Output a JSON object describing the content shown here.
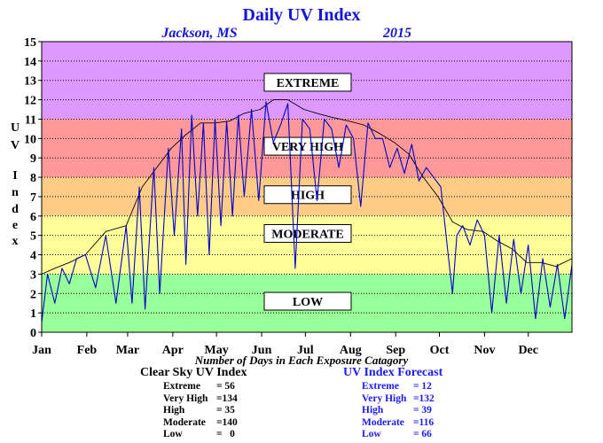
{
  "header": {
    "title": "Daily UV Index",
    "location": "Jackson, MS",
    "year": "2015"
  },
  "chart_data": {
    "type": "line",
    "ylabel": "UV Index",
    "ylabel_letters": [
      "U",
      "V",
      "I",
      "n",
      "d",
      "e",
      "x"
    ],
    "xlabel": "Number of Days in Each Exposure Catagory",
    "ylim": [
      0,
      15
    ],
    "y_ticks": [
      "0",
      "1",
      "2",
      "3",
      "4",
      "5",
      "6",
      "7",
      "8",
      "9",
      "10",
      "11",
      "12",
      "13",
      "14",
      "15"
    ],
    "x_ticks": [
      "Jan",
      "Feb",
      "Mar",
      "Apr",
      "May",
      "Jun",
      "Jul",
      "Aug",
      "Sep",
      "Oct",
      "Nov",
      "Dec"
    ],
    "grid": true,
    "bands": [
      {
        "label": "LOW",
        "from": 0,
        "to": 3,
        "color": "#99ff99"
      },
      {
        "label": "MODERATE",
        "from": 3,
        "to": 6,
        "color": "#ffff99"
      },
      {
        "label": "HIGH",
        "from": 6,
        "to": 8,
        "color": "#ffcc88"
      },
      {
        "label": "VERY HIGH",
        "from": 8,
        "to": 11,
        "color": "#ff9999"
      },
      {
        "label": "EXTREME",
        "from": 11,
        "to": 15,
        "color": "#dd99ff"
      }
    ],
    "series": [
      {
        "name": "Clear Sky UV Index",
        "color": "#000000",
        "x_day": [
          1,
          10,
          20,
          31,
          45,
          59,
          70,
          80,
          90,
          100,
          110,
          120,
          130,
          140,
          151,
          160,
          170,
          181,
          190,
          200,
          212,
          222,
          232,
          243,
          253,
          263,
          273,
          283,
          293,
          304,
          314,
          324,
          334,
          344,
          354,
          365
        ],
        "values": [
          3.0,
          3.3,
          3.6,
          4.0,
          5.2,
          5.5,
          7.5,
          8.5,
          9.5,
          10.2,
          10.8,
          10.8,
          10.9,
          11.3,
          11.5,
          12.0,
          12.0,
          11.5,
          11.3,
          11.1,
          10.9,
          10.7,
          10.3,
          9.8,
          9.2,
          8.0,
          7.0,
          5.7,
          5.3,
          5.2,
          4.7,
          4.3,
          3.6,
          3.6,
          3.4,
          3.8
        ]
      },
      {
        "name": "UV Index Forecast",
        "color": "#0000cc",
        "x_day": [
          1,
          5,
          10,
          15,
          20,
          25,
          31,
          38,
          45,
          52,
          59,
          63,
          68,
          72,
          78,
          82,
          88,
          92,
          97,
          100,
          104,
          108,
          112,
          116,
          120,
          124,
          128,
          132,
          136,
          140,
          145,
          150,
          155,
          160,
          165,
          170,
          175,
          180,
          185,
          190,
          195,
          200,
          205,
          210,
          215,
          220,
          225,
          230,
          235,
          240,
          245,
          250,
          255,
          260,
          265,
          270,
          275,
          280,
          283,
          286,
          290,
          295,
          300,
          305,
          310,
          315,
          320,
          325,
          330,
          335,
          340,
          345,
          350,
          355,
          360,
          365
        ],
        "values": [
          0.5,
          3.0,
          1.5,
          3.3,
          2.5,
          3.8,
          4.0,
          2.3,
          5.0,
          1.5,
          5.5,
          1.5,
          7.5,
          1.2,
          8.5,
          2.0,
          9.5,
          5.0,
          10.5,
          3.5,
          11.2,
          6.0,
          10.8,
          4.0,
          11.0,
          5.5,
          10.9,
          6.0,
          11.2,
          7.0,
          11.5,
          6.8,
          11.9,
          9.8,
          10.7,
          11.8,
          3.3,
          11.0,
          10.5,
          6.8,
          11.0,
          10.5,
          8.5,
          10.7,
          10.0,
          6.5,
          10.8,
          10.0,
          10.0,
          8.5,
          9.5,
          8.2,
          9.7,
          7.8,
          8.5,
          8.0,
          7.5,
          4.0,
          2.0,
          5.0,
          5.5,
          4.5,
          5.8,
          5.0,
          1.0,
          5.0,
          1.5,
          4.8,
          2.0,
          4.5,
          0.7,
          3.8,
          1.3,
          3.5,
          0.7,
          3.5
        ]
      }
    ]
  },
  "summary": {
    "clear_sky": {
      "title": "Clear Sky UV Index",
      "rows": [
        {
          "label": "Extreme",
          "value": "= 56"
        },
        {
          "label": "Very High",
          "value": "=134"
        },
        {
          "label": "High",
          "value": "= 35"
        },
        {
          "label": "Moderate",
          "value": "=140"
        },
        {
          "label": "Low",
          "value": "=   0"
        }
      ]
    },
    "forecast": {
      "title": "UV Index Forecast",
      "rows": [
        {
          "label": "Extreme",
          "value": "= 12"
        },
        {
          "label": "Very High",
          "value": "=132"
        },
        {
          "label": "High",
          "value": "= 39"
        },
        {
          "label": "Moderate",
          "value": "=116"
        },
        {
          "label": "Low",
          "value": "= 66"
        }
      ]
    }
  }
}
